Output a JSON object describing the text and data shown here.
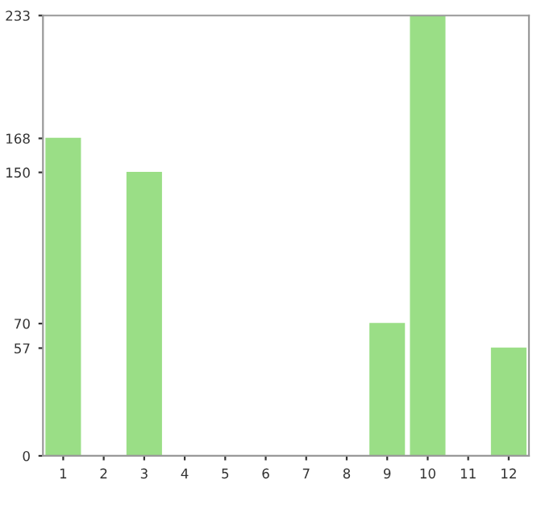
{
  "chart_data": {
    "type": "bar",
    "categories": [
      "1",
      "2",
      "3",
      "4",
      "5",
      "6",
      "7",
      "8",
      "9",
      "10",
      "11",
      "12"
    ],
    "values": [
      168,
      0,
      150,
      0,
      0,
      0,
      0,
      0,
      70,
      233,
      0,
      57
    ],
    "color": "#9ade86",
    "ylim": [
      0,
      233
    ],
    "yticks": [
      0,
      57,
      70,
      150,
      168,
      233
    ],
    "grid": false
  }
}
